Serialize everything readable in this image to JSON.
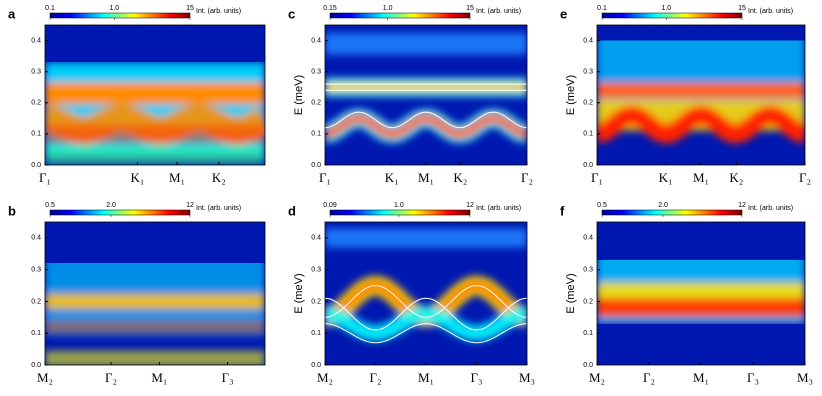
{
  "chart_data": [
    {
      "type": "heatmap",
      "label": "a",
      "ylim": [
        0,
        0.45
      ],
      "yticks": [
        {
          "value": 0,
          "label": "0.0"
        },
        0.1,
        0.2,
        0.3,
        0.4
      ],
      "categories": [
        "Γ₁",
        "K₁",
        "M₁",
        "K₂"
      ],
      "colormap": "jet",
      "colorbar": {
        "label": "Int. (arb. units)",
        "log": true,
        "clim": [
          0.1,
          15
        ],
        "ticks": [
          0.1,
          {
            "value": 1,
            "label": "1.0"
          },
          15
        ]
      }
    },
    {
      "type": "heatmap",
      "label": "c",
      "ylabel": "E (meV)",
      "ylim": [
        0,
        0.45
      ],
      "yticks": [
        {
          "value": 0,
          "label": "0.0"
        },
        0.1,
        0.2,
        0.3,
        0.4
      ],
      "categories": [
        "Γ₁",
        "K₁",
        "M₁",
        "K₂",
        "Γ₂"
      ],
      "colormap": "jet",
      "colorbar": {
        "label": "Int. (arb. units)",
        "log": true,
        "clim": [
          0.15,
          15
        ],
        "ticks": [
          0.15,
          {
            "value": 1,
            "label": "1.0"
          },
          15
        ]
      }
    },
    {
      "type": "heatmap",
      "label": "e",
      "ylabel": "E (meV)",
      "ylim": [
        0,
        0.45
      ],
      "yticks": [
        {
          "value": 0,
          "label": "0.0"
        },
        0.1,
        0.2,
        0.3,
        0.4
      ],
      "categories": [
        "Γ₁",
        "K₁",
        "M₁",
        "K₂",
        "Γ₂"
      ],
      "colormap": "jet",
      "colorbar": {
        "label": "Int. (arb. units)",
        "log": true,
        "clim": [
          0.1,
          15
        ],
        "ticks": [
          0.1,
          {
            "value": 1,
            "label": "1.0"
          },
          15
        ]
      }
    },
    {
      "type": "heatmap",
      "label": "b",
      "ylim": [
        0,
        0.45
      ],
      "yticks": [
        {
          "value": 0,
          "label": "0.0"
        },
        0.1,
        0.2,
        0.3,
        0.4
      ],
      "categories": [
        "M₂",
        "Γ₂",
        "M₁",
        "Γ₃"
      ],
      "colormap": "jet",
      "colorbar": {
        "label": "Int. (arb. units)",
        "log": true,
        "clim": [
          0.5,
          12
        ],
        "ticks": [
          0.5,
          {
            "value": 2,
            "label": "2.0"
          },
          12
        ]
      }
    },
    {
      "type": "heatmap",
      "label": "d",
      "ylabel": "E (meV)",
      "ylim": [
        0,
        0.45
      ],
      "yticks": [
        {
          "value": 0,
          "label": "0.0"
        },
        0.1,
        0.2,
        0.3,
        0.4
      ],
      "categories": [
        "M₂",
        "Γ₂",
        "M₁",
        "Γ₃",
        "M₃"
      ],
      "colormap": "jet",
      "colorbar": {
        "label": "Int. (arb. units)",
        "log": true,
        "clim": [
          0.09,
          12
        ],
        "ticks": [
          0.09,
          {
            "value": 1,
            "label": "1.0"
          },
          12
        ]
      }
    },
    {
      "type": "heatmap",
      "label": "f",
      "ylabel": "E (meV)",
      "ylim": [
        0,
        0.45
      ],
      "yticks": [
        {
          "value": 0,
          "label": "0.0"
        },
        0.1,
        0.2,
        0.3,
        0.4
      ],
      "categories": [
        "M₂",
        "Γ₂",
        "M₁",
        "Γ₃",
        "M₃"
      ],
      "colormap": "jet",
      "colorbar": {
        "label": "Int. (arb. units)",
        "log": true,
        "clim": [
          0.5,
          12
        ],
        "ticks": [
          0.5,
          {
            "value": 2,
            "label": "2.0"
          },
          12
        ]
      }
    }
  ]
}
